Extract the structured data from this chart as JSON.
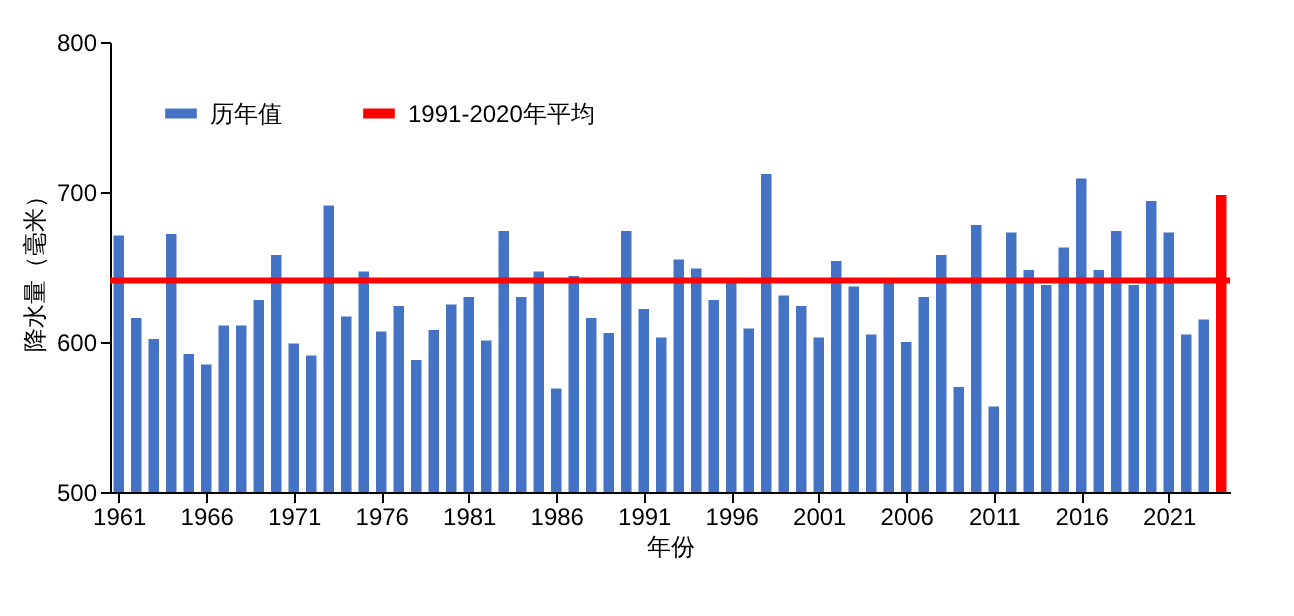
{
  "chart_data": {
    "type": "bar",
    "xlabel": "年份",
    "ylabel": "降水量（毫米）",
    "x": [
      1961,
      1962,
      1963,
      1964,
      1965,
      1966,
      1967,
      1968,
      1969,
      1970,
      1971,
      1972,
      1973,
      1974,
      1975,
      1976,
      1977,
      1978,
      1979,
      1980,
      1981,
      1982,
      1983,
      1984,
      1985,
      1986,
      1987,
      1988,
      1989,
      1990,
      1991,
      1992,
      1993,
      1994,
      1995,
      1996,
      1997,
      1998,
      1999,
      2000,
      2001,
      2002,
      2003,
      2004,
      2005,
      2006,
      2007,
      2008,
      2009,
      2010,
      2011,
      2012,
      2013,
      2014,
      2015,
      2016,
      2017,
      2018,
      2019,
      2020,
      2021,
      2022,
      2023,
      2024
    ],
    "series": [
      {
        "name": "历年值",
        "color": "#4472c4",
        "colors": [
          "#4472c4",
          "#4472c4",
          "#4472c4",
          "#4472c4",
          "#4472c4",
          "#4472c4",
          "#4472c4",
          "#4472c4",
          "#4472c4",
          "#4472c4",
          "#4472c4",
          "#4472c4",
          "#4472c4",
          "#4472c4",
          "#4472c4",
          "#4472c4",
          "#4472c4",
          "#4472c4",
          "#4472c4",
          "#4472c4",
          "#4472c4",
          "#4472c4",
          "#4472c4",
          "#4472c4",
          "#4472c4",
          "#4472c4",
          "#4472c4",
          "#4472c4",
          "#4472c4",
          "#4472c4",
          "#4472c4",
          "#4472c4",
          "#4472c4",
          "#4472c4",
          "#4472c4",
          "#4472c4",
          "#4472c4",
          "#4472c4",
          "#4472c4",
          "#4472c4",
          "#4472c4",
          "#4472c4",
          "#4472c4",
          "#4472c4",
          "#4472c4",
          "#4472c4",
          "#4472c4",
          "#4472c4",
          "#4472c4",
          "#4472c4",
          "#4472c4",
          "#4472c4",
          "#4472c4",
          "#4472c4",
          "#4472c4",
          "#4472c4",
          "#4472c4",
          "#4472c4",
          "#4472c4",
          "#4472c4",
          "#4472c4",
          "#4472c4",
          "#4472c4",
          "#ff0000"
        ],
        "values": [
          671,
          616,
          602,
          672,
          592,
          585,
          611,
          611,
          628,
          658,
          599,
          591,
          691,
          617,
          647,
          607,
          624,
          588,
          608,
          625,
          630,
          601,
          674,
          630,
          647,
          569,
          644,
          616,
          606,
          674,
          622,
          603,
          655,
          649,
          628,
          640,
          609,
          712,
          631,
          624,
          603,
          654,
          637,
          605,
          640,
          600,
          630,
          658,
          570,
          678,
          557,
          673,
          648,
          638,
          663,
          709,
          648,
          674,
          638,
          694,
          673,
          605,
          615,
          698
        ]
      }
    ],
    "ref_lines": [
      {
        "axis": "y",
        "value": 641,
        "label": "1991-2020年平均",
        "color": "#ff0000"
      }
    ],
    "xlim": [
      1960.5,
      2024.5
    ],
    "xticks": [
      1961,
      1966,
      1971,
      1976,
      1981,
      1986,
      1991,
      1996,
      2001,
      2006,
      2011,
      2016,
      2021
    ],
    "ylim": [
      500,
      800
    ],
    "yticks": [
      500,
      600,
      700,
      800
    ],
    "grid": false,
    "legend": "top left"
  }
}
